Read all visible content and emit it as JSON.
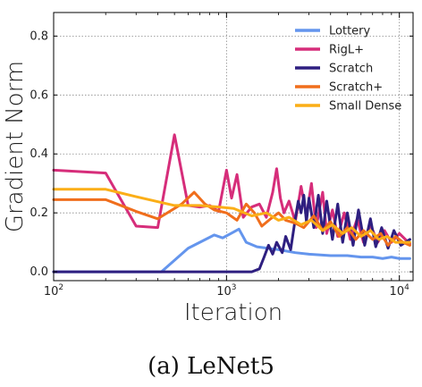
{
  "caption": "(a) LeNet5",
  "chart_data": {
    "type": "line",
    "xlabel": "Iteration",
    "ylabel": "Gradient Norm",
    "xscale": "log",
    "xlim": [
      100,
      12000
    ],
    "ylim": [
      -0.03,
      0.88
    ],
    "grid": true,
    "legend_position": "top-right",
    "x_ticks": [
      {
        "value": 100,
        "base": "10",
        "exp": "2"
      },
      {
        "value": 1000,
        "base": "10",
        "exp": "3"
      },
      {
        "value": 10000,
        "base": "10",
        "exp": "4"
      }
    ],
    "y_ticks": [
      {
        "value": 0.0,
        "label": "0.0"
      },
      {
        "value": 0.2,
        "label": "0.2"
      },
      {
        "value": 0.4,
        "label": "0.4"
      },
      {
        "value": 0.6,
        "label": "0.6"
      },
      {
        "value": 0.8,
        "label": "0.8"
      }
    ],
    "series": [
      {
        "name": "Lottery",
        "color": "#6495ED",
        "points": [
          [
            100,
            0.0
          ],
          [
            200,
            0.0
          ],
          [
            420,
            0.0
          ],
          [
            600,
            0.08
          ],
          [
            850,
            0.125
          ],
          [
            950,
            0.115
          ],
          [
            1100,
            0.135
          ],
          [
            1180,
            0.145
          ],
          [
            1300,
            0.1
          ],
          [
            1500,
            0.085
          ],
          [
            2000,
            0.075
          ],
          [
            2500,
            0.065
          ],
          [
            3000,
            0.06
          ],
          [
            4000,
            0.055
          ],
          [
            5000,
            0.055
          ],
          [
            6000,
            0.05
          ],
          [
            7000,
            0.05
          ],
          [
            8000,
            0.045
          ],
          [
            9000,
            0.05
          ],
          [
            10000,
            0.045
          ],
          [
            11500,
            0.045
          ]
        ]
      },
      {
        "name": "RigL+",
        "color": "#D62D7A",
        "points": [
          [
            100,
            0.345
          ],
          [
            200,
            0.335
          ],
          [
            300,
            0.155
          ],
          [
            400,
            0.15
          ],
          [
            500,
            0.465
          ],
          [
            600,
            0.225
          ],
          [
            700,
            0.22
          ],
          [
            800,
            0.225
          ],
          [
            900,
            0.205
          ],
          [
            1000,
            0.345
          ],
          [
            1070,
            0.25
          ],
          [
            1150,
            0.33
          ],
          [
            1250,
            0.185
          ],
          [
            1400,
            0.22
          ],
          [
            1550,
            0.23
          ],
          [
            1700,
            0.185
          ],
          [
            1850,
            0.27
          ],
          [
            1950,
            0.35
          ],
          [
            2050,
            0.25
          ],
          [
            2150,
            0.2
          ],
          [
            2300,
            0.24
          ],
          [
            2500,
            0.17
          ],
          [
            2700,
            0.29
          ],
          [
            2900,
            0.19
          ],
          [
            3100,
            0.3
          ],
          [
            3300,
            0.15
          ],
          [
            3600,
            0.27
          ],
          [
            3800,
            0.13
          ],
          [
            4100,
            0.21
          ],
          [
            4400,
            0.12
          ],
          [
            4800,
            0.2
          ],
          [
            5200,
            0.11
          ],
          [
            5700,
            0.18
          ],
          [
            6200,
            0.1
          ],
          [
            6800,
            0.16
          ],
          [
            7500,
            0.1
          ],
          [
            8200,
            0.14
          ],
          [
            9000,
            0.1
          ],
          [
            10000,
            0.13
          ],
          [
            11500,
            0.095
          ]
        ]
      },
      {
        "name": "Scratch",
        "color": "#2E1F80",
        "points": [
          [
            100,
            0.0
          ],
          [
            500,
            0.0
          ],
          [
            1000,
            0.0
          ],
          [
            1400,
            0.0
          ],
          [
            1550,
            0.01
          ],
          [
            1650,
            0.05
          ],
          [
            1750,
            0.09
          ],
          [
            1850,
            0.06
          ],
          [
            1950,
            0.1
          ],
          [
            2100,
            0.065
          ],
          [
            2200,
            0.12
          ],
          [
            2350,
            0.075
          ],
          [
            2500,
            0.18
          ],
          [
            2600,
            0.24
          ],
          [
            2700,
            0.2
          ],
          [
            2800,
            0.26
          ],
          [
            2900,
            0.17
          ],
          [
            3000,
            0.25
          ],
          [
            3200,
            0.15
          ],
          [
            3400,
            0.26
          ],
          [
            3600,
            0.13
          ],
          [
            3800,
            0.24
          ],
          [
            4100,
            0.11
          ],
          [
            4400,
            0.23
          ],
          [
            4700,
            0.1
          ],
          [
            5000,
            0.2
          ],
          [
            5400,
            0.09
          ],
          [
            5800,
            0.21
          ],
          [
            6300,
            0.09
          ],
          [
            6800,
            0.18
          ],
          [
            7300,
            0.085
          ],
          [
            7900,
            0.15
          ],
          [
            8600,
            0.08
          ],
          [
            9300,
            0.14
          ],
          [
            10200,
            0.09
          ],
          [
            11500,
            0.11
          ]
        ]
      },
      {
        "name": "Scratch+",
        "color": "#F06E1C",
        "points": [
          [
            100,
            0.245
          ],
          [
            200,
            0.245
          ],
          [
            300,
            0.205
          ],
          [
            400,
            0.18
          ],
          [
            550,
            0.23
          ],
          [
            650,
            0.27
          ],
          [
            750,
            0.23
          ],
          [
            850,
            0.21
          ],
          [
            1000,
            0.2
          ],
          [
            1150,
            0.175
          ],
          [
            1300,
            0.23
          ],
          [
            1450,
            0.2
          ],
          [
            1600,
            0.155
          ],
          [
            1800,
            0.18
          ],
          [
            2000,
            0.2
          ],
          [
            2200,
            0.175
          ],
          [
            2500,
            0.165
          ],
          [
            2800,
            0.15
          ],
          [
            3200,
            0.19
          ],
          [
            3600,
            0.14
          ],
          [
            4000,
            0.17
          ],
          [
            4500,
            0.12
          ],
          [
            5000,
            0.15
          ],
          [
            5600,
            0.11
          ],
          [
            6200,
            0.14
          ],
          [
            7000,
            0.11
          ],
          [
            7800,
            0.13
          ],
          [
            8600,
            0.09
          ],
          [
            9500,
            0.12
          ],
          [
            10500,
            0.1
          ],
          [
            11500,
            0.09
          ]
        ]
      },
      {
        "name": "Small Dense",
        "color": "#FBAE17",
        "points": [
          [
            100,
            0.28
          ],
          [
            200,
            0.28
          ],
          [
            300,
            0.255
          ],
          [
            500,
            0.225
          ],
          [
            700,
            0.225
          ],
          [
            900,
            0.22
          ],
          [
            1100,
            0.215
          ],
          [
            1400,
            0.19
          ],
          [
            1700,
            0.2
          ],
          [
            2000,
            0.175
          ],
          [
            2300,
            0.185
          ],
          [
            2700,
            0.16
          ],
          [
            3100,
            0.175
          ],
          [
            3600,
            0.14
          ],
          [
            4100,
            0.16
          ],
          [
            4700,
            0.13
          ],
          [
            5300,
            0.15
          ],
          [
            6000,
            0.12
          ],
          [
            6800,
            0.14
          ],
          [
            7600,
            0.11
          ],
          [
            8500,
            0.12
          ],
          [
            9500,
            0.1
          ],
          [
            11500,
            0.1
          ]
        ]
      }
    ]
  }
}
